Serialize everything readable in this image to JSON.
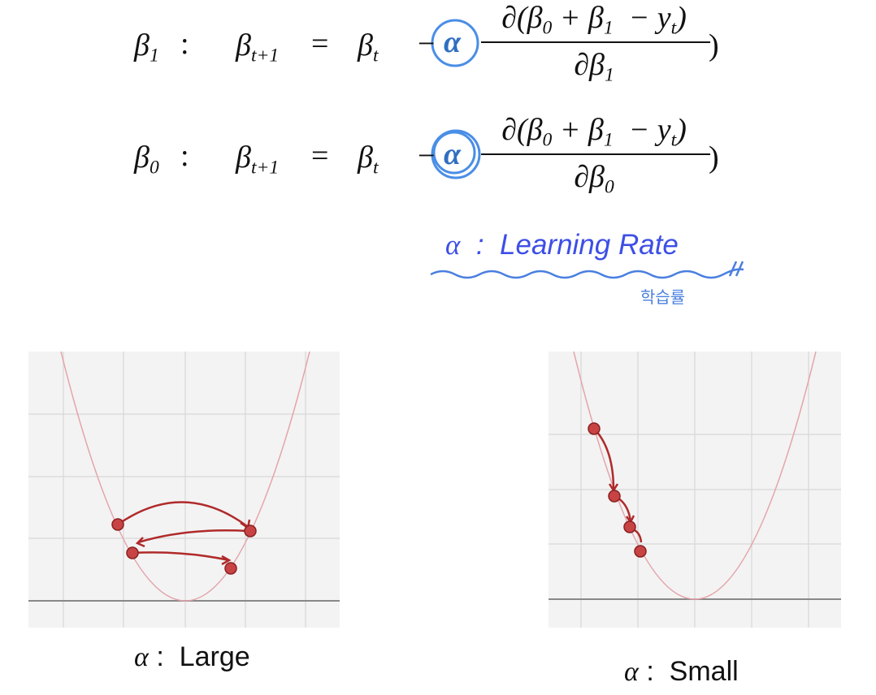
{
  "equations": [
    {
      "param": {
        "base": "β",
        "sub": "1"
      },
      "colon": ":",
      "lhs": {
        "base": "β",
        "sub": "t+1"
      },
      "equals": "=",
      "rhs": {
        "base": "β",
        "sub": "t"
      },
      "minus": "−",
      "alpha": "α",
      "numerator": [
        {
          "text": "∂(β"
        },
        {
          "sub": "0"
        },
        {
          "text": " + β"
        },
        {
          "sub": "1"
        },
        {
          "text": "  − y"
        },
        {
          "sub": "t"
        },
        {
          "text": ")"
        }
      ],
      "denominator": [
        {
          "text": "∂β"
        },
        {
          "sub": "1"
        }
      ],
      "close": ")"
    },
    {
      "param": {
        "base": "β",
        "sub": "0"
      },
      "colon": ":",
      "lhs": {
        "base": "β",
        "sub": "t+1"
      },
      "equals": "=",
      "rhs": {
        "base": "β",
        "sub": "t"
      },
      "minus": "−",
      "alpha": "α",
      "numerator": [
        {
          "text": "∂(β"
        },
        {
          "sub": "0"
        },
        {
          "text": " + β"
        },
        {
          "sub": "1"
        },
        {
          "text": "  − y"
        },
        {
          "sub": "t"
        },
        {
          "text": ")"
        }
      ],
      "denominator": [
        {
          "text": "∂β"
        },
        {
          "sub": "0"
        }
      ],
      "close": ")"
    }
  ],
  "annotation": {
    "symbol": "α",
    "separator": ":",
    "text": "Learning Rate",
    "note": "학습률"
  },
  "captions": [
    {
      "symbol": "α",
      "separator": ":",
      "text": "Large"
    },
    {
      "symbol": "α",
      "separator": ":",
      "text": "Small"
    }
  ]
}
